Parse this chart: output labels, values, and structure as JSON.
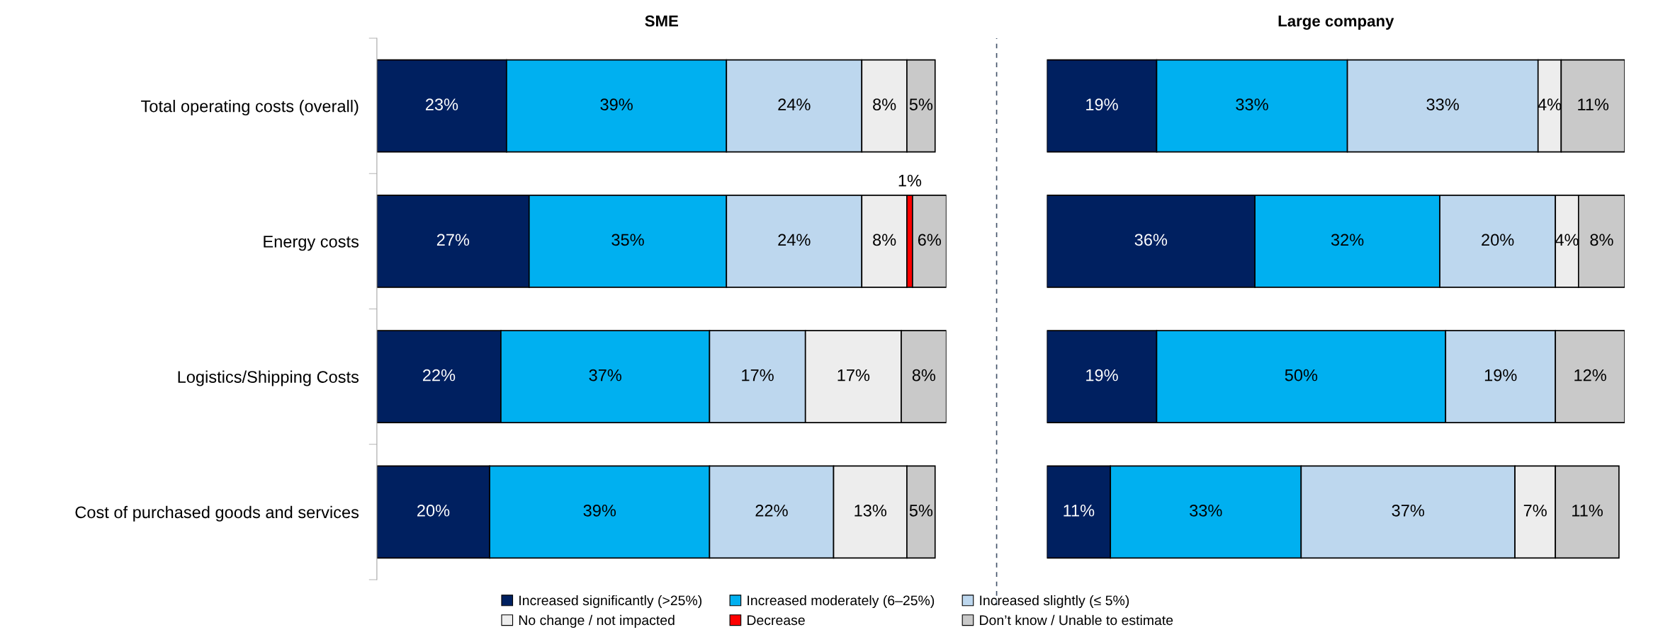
{
  "chart_data": [
    {
      "type": "bar",
      "orientation": "horizontal",
      "stacked": true,
      "title": "SME",
      "categories": [
        "Total operating costs (overall)",
        "Energy costs",
        "Logistics/Shipping Costs",
        "Cost of purchased goods and services"
      ],
      "legend": "bottom",
      "series": [
        {
          "name": "Increased significantly (>25%)",
          "color": "#002060",
          "values": [
            23,
            27,
            22,
            20
          ],
          "value_labels": [
            "23%",
            "27%",
            "22%",
            "20%"
          ]
        },
        {
          "name": "Increased moderately (6–25%)",
          "color": "#00b0f0",
          "values": [
            39,
            35,
            37,
            39
          ],
          "value_labels": [
            "39%",
            "35%",
            "37%",
            "39%"
          ]
        },
        {
          "name": "Increased slightly (≤ 5%)",
          "color": "#bdd7ee",
          "values": [
            24,
            24,
            17,
            22
          ],
          "value_labels": [
            "24%",
            "24%",
            "17%",
            "22%"
          ]
        },
        {
          "name": "No change / not impacted",
          "color": "#ededed",
          "values": [
            8,
            8,
            17,
            13
          ],
          "value_labels": [
            "8%",
            "8%",
            "17%",
            "13%"
          ]
        },
        {
          "name": "Decrease",
          "color": "#ff0000",
          "values": [
            null,
            1,
            null,
            null
          ],
          "value_labels": [
            null,
            "1%",
            null,
            null
          ]
        },
        {
          "name": "Don’t know / Unable to estimate",
          "color": "#c9c9c9",
          "values": [
            5,
            6,
            8,
            5
          ],
          "value_labels": [
            "5%",
            "6%",
            "8%",
            "5%"
          ]
        }
      ]
    },
    {
      "type": "bar",
      "orientation": "horizontal",
      "stacked": true,
      "title": "Large company",
      "categories": [
        null,
        null,
        null,
        null
      ],
      "series": [
        {
          "color": "#002060",
          "values": [
            19,
            36,
            19,
            11
          ],
          "value_labels": [
            "19%",
            "36%",
            "19%",
            "11%"
          ]
        },
        {
          "color": "#00b0f0",
          "values": [
            33,
            32,
            50,
            33
          ],
          "value_labels": [
            "33%",
            "32%",
            "50%",
            "33%"
          ]
        },
        {
          "color": "#bdd7ee",
          "values": [
            33,
            20,
            19,
            37
          ],
          "value_labels": [
            "33%",
            "20%",
            "19%",
            "37%"
          ]
        },
        {
          "color": "#ededed",
          "values": [
            4,
            4,
            null,
            7
          ],
          "value_labels": [
            "4%",
            "4%",
            null,
            "7%"
          ]
        },
        {
          "color": "#c9c9c9",
          "values": [
            11,
            8,
            12,
            11
          ],
          "value_labels": [
            "11%",
            "8%",
            "12%",
            "11%"
          ]
        }
      ]
    }
  ]
}
